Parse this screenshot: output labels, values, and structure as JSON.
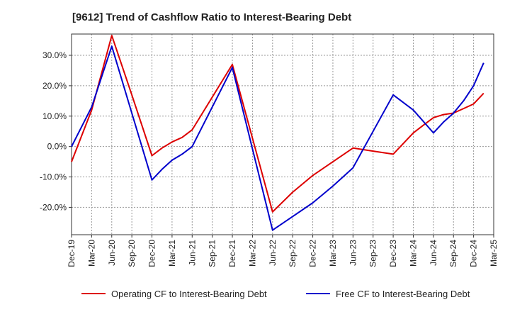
{
  "chart_data": {
    "type": "line",
    "title": "[9612]  Trend of Cashflow Ratio to Interest-Bearing Debt",
    "xlabel": "",
    "ylabel": "",
    "x": [
      "Dec-19",
      "Mar-20",
      "Jun-20",
      "Sep-20",
      "Dec-20",
      "Mar-21",
      "Jun-21",
      "Sep-21",
      "Dec-21",
      "Mar-22",
      "Jun-22",
      "Sep-22",
      "Dec-22",
      "Mar-23",
      "Jun-23",
      "Sep-23",
      "Dec-23",
      "Mar-24",
      "Jun-24",
      "Sep-24",
      "Dec-24",
      "Mar-25"
    ],
    "yticks": [
      "30.0%",
      "20.0%",
      "10.0%",
      "0.0%",
      "-10.0%",
      "-20.0%"
    ],
    "ytick_values": [
      30,
      20,
      10,
      0,
      -10,
      -20
    ],
    "ylim": [
      -29,
      37
    ],
    "grid": true,
    "legend_position": "bottom",
    "series": [
      {
        "name": "Operating CF to Interest-Bearing Debt",
        "color": "#dd0000",
        "points": [
          [
            0,
            -5
          ],
          [
            1,
            12
          ],
          [
            2,
            36.5
          ],
          [
            3,
            17
          ],
          [
            4,
            -3
          ],
          [
            4.5,
            -0.5
          ],
          [
            5,
            1.5
          ],
          [
            5.5,
            3
          ],
          [
            6,
            5.5
          ],
          [
            8,
            27
          ],
          [
            10,
            -21.5
          ],
          [
            11,
            -15
          ],
          [
            12,
            -9.5
          ],
          [
            13,
            -5
          ],
          [
            14,
            -0.5
          ],
          [
            15,
            -1.5
          ],
          [
            16,
            -2.5
          ],
          [
            17,
            4.5
          ],
          [
            17.5,
            7
          ],
          [
            18,
            9.5
          ],
          [
            18.5,
            10.5
          ],
          [
            19,
            11
          ],
          [
            19.5,
            12.5
          ],
          [
            20,
            14
          ],
          [
            20.5,
            17.5
          ]
        ]
      },
      {
        "name": "Free CF to Interest-Bearing Debt",
        "color": "#0000cc",
        "points": [
          [
            0,
            0
          ],
          [
            1,
            13
          ],
          [
            2,
            33
          ],
          [
            3,
            11
          ],
          [
            4,
            -11
          ],
          [
            4.5,
            -7.5
          ],
          [
            5,
            -4.5
          ],
          [
            5.5,
            -2.5
          ],
          [
            6,
            0
          ],
          [
            8,
            26
          ],
          [
            10,
            -27.5
          ],
          [
            11,
            -23
          ],
          [
            12,
            -18.5
          ],
          [
            13,
            -13
          ],
          [
            14,
            -7
          ],
          [
            15,
            5
          ],
          [
            16,
            17
          ],
          [
            17,
            12
          ],
          [
            18,
            4.5
          ],
          [
            18.5,
            8
          ],
          [
            19,
            11
          ],
          [
            19.5,
            15
          ],
          [
            20,
            20
          ],
          [
            20.5,
            27.5
          ]
        ]
      }
    ]
  }
}
